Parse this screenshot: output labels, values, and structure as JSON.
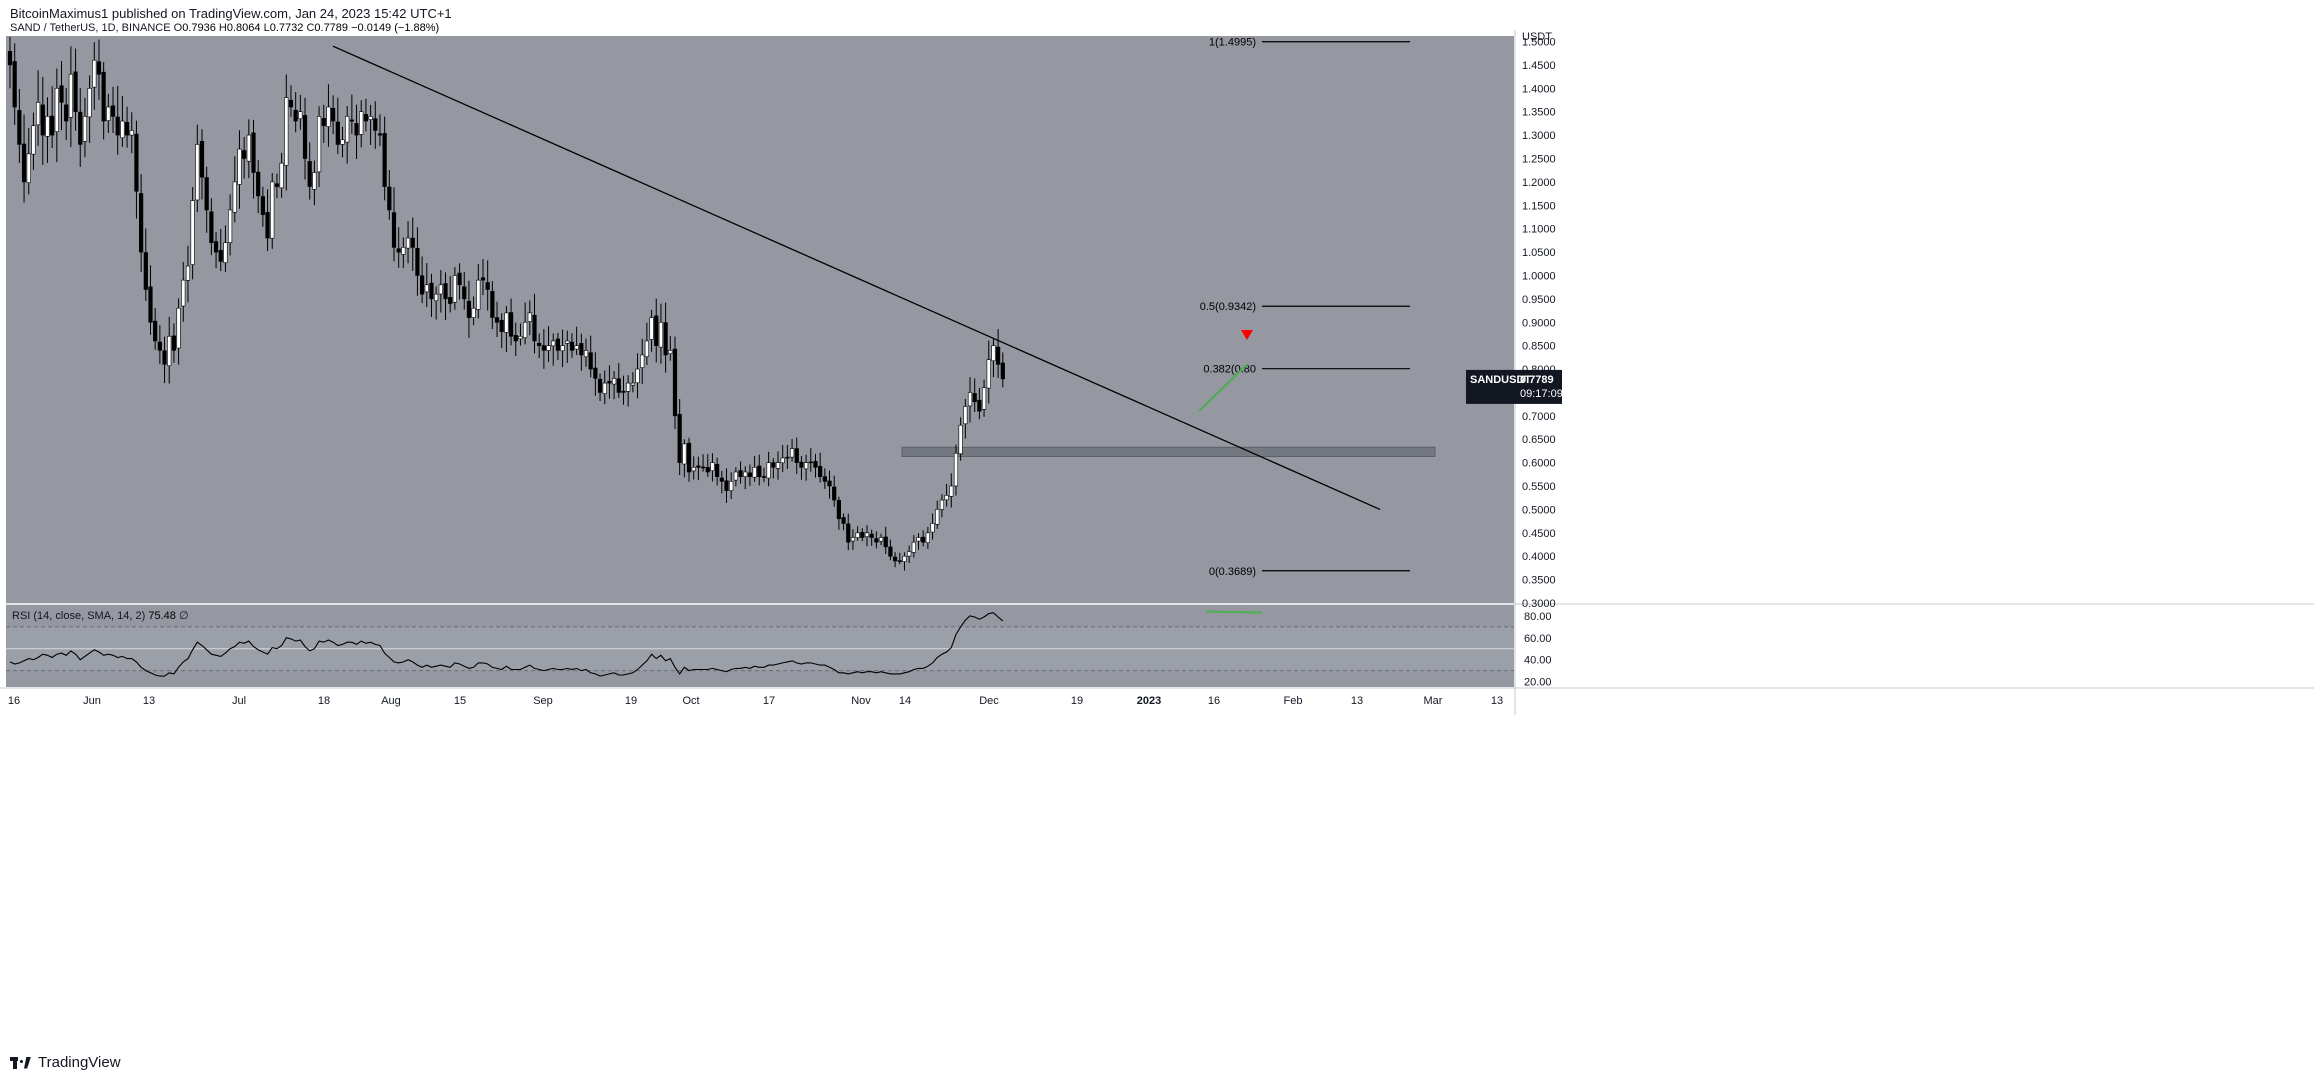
{
  "publisher": "BitcoinMaximus1 published on TradingView.com, Jan 24, 2023 15:42 UTC+1",
  "footer_brand": "TradingView",
  "colors": {
    "panel_bg": "#9598a1",
    "axis_bg": "#ffffff",
    "up": "#ffffff",
    "down": "#000000",
    "wick": "#000000",
    "line": "#000000",
    "signal": "#ff0000",
    "divergence": "#4caf50",
    "support_zone": "#6f727a"
  },
  "chart_data": {
    "type": "candlestick",
    "symbol_header": {
      "name": "SAND / TetherUS, 1D, BINANCE",
      "o_label": "O",
      "o_value": "0.7936",
      "h_label": "H",
      "h_value": "0.8064",
      "l_label": "L",
      "l_value": "0.7732",
      "c_label": "C",
      "c_value": "0.7789",
      "change": "−0.0149 (−1.88%)"
    },
    "price_axis": {
      "unit": "USDT",
      "ticks": [
        "1.5000",
        "1.4500",
        "1.4000",
        "1.3500",
        "1.3000",
        "1.2500",
        "1.2000",
        "1.1500",
        "1.1000",
        "1.0500",
        "1.0000",
        "0.9500",
        "0.9000",
        "0.8500",
        "0.8000",
        "0.7500",
        "0.7000",
        "0.6500",
        "0.6000",
        "0.5500",
        "0.5000",
        "0.4500",
        "0.4000",
        "0.3500",
        "0.3000"
      ],
      "ylim": [
        0.3,
        1.53
      ]
    },
    "time_axis": [
      "16",
      "Jun",
      "13",
      "Jul",
      "18",
      "Aug",
      "15",
      "Sep",
      "19",
      "Oct",
      "17",
      "Nov",
      "14",
      "Dec",
      "19",
      "2023",
      "16",
      "Feb",
      "13",
      "Mar",
      "13"
    ],
    "current_price": {
      "symbol": "SANDUSDT",
      "value": "0.7789",
      "countdown": "09:17:09"
    },
    "fib_levels": [
      {
        "label": "1(1.4995)",
        "value": 1.4995
      },
      {
        "label": "0.5(0.9342)",
        "value": 0.9342
      },
      {
        "label": "0.382(0.80",
        "value": 0.8008
      },
      {
        "label": "0(0.3689)",
        "value": 0.3689
      }
    ],
    "trendline": {
      "start": [
        "Jul 18",
        1.49
      ],
      "end": [
        "Feb 19",
        0.5
      ]
    },
    "support_zone": [
      0.613,
      0.633
    ],
    "closes": [
      1.45,
      1.36,
      1.28,
      1.2,
      1.26,
      1.32,
      1.37,
      1.3,
      1.34,
      1.3,
      1.4,
      1.37,
      1.33,
      1.43,
      1.35,
      1.28,
      1.34,
      1.4,
      1.46,
      1.43,
      1.33,
      1.36,
      1.34,
      1.3,
      1.33,
      1.3,
      1.31,
      1.18,
      1.05,
      0.97,
      0.9,
      0.86,
      0.84,
      0.81,
      0.87,
      0.84,
      0.93,
      0.99,
      1.02,
      1.16,
      1.28,
      1.21,
      1.14,
      1.07,
      1.05,
      1.03,
      1.07,
      1.14,
      1.2,
      1.27,
      1.25,
      1.3,
      1.22,
      1.17,
      1.13,
      1.08,
      1.2,
      1.19,
      1.24,
      1.38,
      1.36,
      1.33,
      1.35,
      1.25,
      1.19,
      1.22,
      1.34,
      1.32,
      1.36,
      1.33,
      1.28,
      1.29,
      1.34,
      1.33,
      1.3,
      1.35,
      1.33,
      1.34,
      1.31,
      1.3,
      1.19,
      1.14,
      1.06,
      1.05,
      1.06,
      1.08,
      1.06,
      1.0,
      0.96,
      0.98,
      0.95,
      0.96,
      0.98,
      0.95,
      0.94,
      1.0,
      0.98,
      0.95,
      0.91,
      0.93,
      0.99,
      0.99,
      0.97,
      0.91,
      0.9,
      0.88,
      0.92,
      0.87,
      0.86,
      0.87,
      0.9,
      0.92,
      0.86,
      0.85,
      0.84,
      0.85,
      0.86,
      0.84,
      0.85,
      0.86,
      0.84,
      0.85,
      0.83,
      0.84,
      0.8,
      0.78,
      0.75,
      0.77,
      0.77,
      0.78,
      0.75,
      0.75,
      0.77,
      0.77,
      0.8,
      0.83,
      0.86,
      0.91,
      0.85,
      0.9,
      0.83,
      0.84,
      0.7,
      0.6,
      0.64,
      0.58,
      0.59,
      0.59,
      0.59,
      0.58,
      0.6,
      0.57,
      0.56,
      0.54,
      0.56,
      0.58,
      0.57,
      0.58,
      0.57,
      0.59,
      0.57,
      0.57,
      0.6,
      0.59,
      0.6,
      0.61,
      0.61,
      0.63,
      0.6,
      0.59,
      0.6,
      0.6,
      0.59,
      0.57,
      0.56,
      0.55,
      0.52,
      0.48,
      0.47,
      0.43,
      0.44,
      0.45,
      0.44,
      0.45,
      0.44,
      0.43,
      0.44,
      0.42,
      0.4,
      0.39,
      0.39,
      0.4,
      0.41,
      0.43,
      0.44,
      0.43,
      0.45,
      0.47,
      0.5,
      0.52,
      0.53,
      0.55,
      0.62,
      0.68,
      0.72,
      0.75,
      0.73,
      0.71,
      0.76,
      0.82,
      0.85,
      0.81,
      0.7789
    ],
    "rsi": {
      "header": "RSI (14, close, SMA, 14, 2)",
      "value": "75.48",
      "flag": "∅",
      "ticks": [
        "80.00",
        "60.00",
        "40.00",
        "20.00"
      ],
      "bands": [
        70,
        50,
        30
      ],
      "ylim": [
        15,
        90
      ],
      "values": [
        38,
        36,
        37,
        39,
        41,
        40,
        42,
        45,
        44,
        42,
        45,
        46,
        44,
        48,
        45,
        40,
        43,
        46,
        49,
        47,
        44,
        45,
        44,
        42,
        43,
        41,
        41,
        38,
        33,
        30,
        28,
        26,
        25,
        25,
        28,
        27,
        33,
        38,
        41,
        49,
        56,
        53,
        49,
        45,
        44,
        43,
        46,
        50,
        52,
        56,
        55,
        57,
        52,
        49,
        47,
        45,
        51,
        50,
        53,
        60,
        59,
        57,
        58,
        52,
        48,
        50,
        57,
        56,
        58,
        56,
        53,
        54,
        56,
        56,
        54,
        57,
        55,
        56,
        54,
        53,
        46,
        42,
        38,
        37,
        38,
        40,
        38,
        35,
        33,
        35,
        33,
        34,
        35,
        34,
        33,
        37,
        36,
        34,
        32,
        33,
        37,
        37,
        36,
        33,
        32,
        31,
        34,
        31,
        31,
        31,
        33,
        35,
        32,
        31,
        30,
        31,
        32,
        31,
        31,
        32,
        31,
        32,
        30,
        31,
        28,
        27,
        25,
        26,
        27,
        28,
        26,
        26,
        27,
        28,
        31,
        35,
        39,
        45,
        41,
        44,
        39,
        41,
        33,
        27,
        33,
        30,
        31,
        31,
        31,
        31,
        32,
        31,
        30,
        29,
        31,
        32,
        32,
        33,
        32,
        34,
        33,
        33,
        35,
        35,
        36,
        37,
        38,
        39,
        37,
        36,
        37,
        37,
        36,
        35,
        35,
        33,
        31,
        28,
        28,
        27,
        28,
        29,
        28,
        29,
        29,
        28,
        29,
        28,
        27,
        27,
        27,
        28,
        29,
        31,
        32,
        32,
        34,
        37,
        42,
        45,
        47,
        51,
        63,
        70,
        76,
        80,
        79,
        77,
        79,
        82,
        83,
        79,
        75.48
      ]
    }
  }
}
